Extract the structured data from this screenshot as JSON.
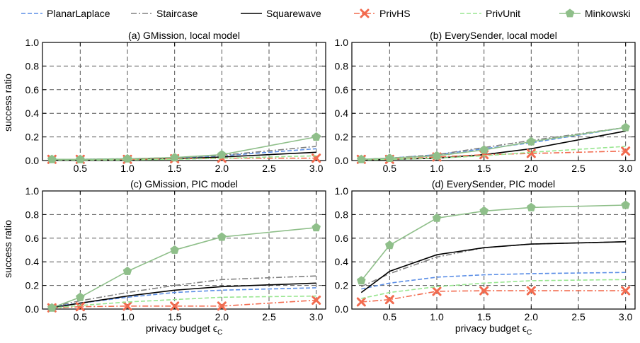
{
  "figure": {
    "x_axis_label": "privacy budget ϵ",
    "x_axis_subscript": "C",
    "y_axis_label": "success ratio"
  },
  "legend": [
    {
      "name": "PlanarLaplace",
      "color": "#5b8ee6",
      "dash": "dashed",
      "marker": "none"
    },
    {
      "name": "Staircase",
      "color": "#808080",
      "dash": "dashdot",
      "marker": "none"
    },
    {
      "name": "Squarewave",
      "color": "#000000",
      "dash": "solid",
      "marker": "none"
    },
    {
      "name": "PrivHS",
      "color": "#f26b4f",
      "dash": "dashdot",
      "marker": "x"
    },
    {
      "name": "PrivUnit",
      "color": "#98e690",
      "dash": "dashed",
      "marker": "none"
    },
    {
      "name": "Minkowski",
      "color": "#8fbf8a",
      "dash": "solid",
      "marker": "pentagon"
    }
  ],
  "chart_data": [
    {
      "type": "line",
      "title": "(a) GMission, local model",
      "x": [
        0.2,
        0.5,
        1.0,
        1.5,
        2.0,
        3.0
      ],
      "xlim": [
        0.1,
        3.1
      ],
      "ylim": [
        0,
        1.0
      ],
      "xticks": [
        "0.5",
        "1.0",
        "1.5",
        "2.0",
        "2.5",
        "3.0"
      ],
      "yticks": [
        "0.0",
        "0.2",
        "0.4",
        "0.6",
        "0.8",
        "1.0"
      ],
      "series": [
        {
          "name": "PlanarLaplace",
          "values": [
            0.01,
            0.01,
            0.015,
            0.02,
            0.04,
            0.1
          ]
        },
        {
          "name": "Staircase",
          "values": [
            0.01,
            0.01,
            0.015,
            0.025,
            0.045,
            0.12
          ]
        },
        {
          "name": "Squarewave",
          "values": [
            0.005,
            0.005,
            0.008,
            0.015,
            0.03,
            0.07
          ]
        },
        {
          "name": "PrivHS",
          "values": [
            0.01,
            0.01,
            0.01,
            0.015,
            0.02,
            0.02
          ]
        },
        {
          "name": "PrivUnit",
          "values": [
            0.005,
            0.005,
            0.005,
            0.01,
            0.02,
            0.04
          ]
        },
        {
          "name": "Minkowski",
          "values": [
            0.01,
            0.01,
            0.015,
            0.025,
            0.05,
            0.2
          ]
        }
      ]
    },
    {
      "type": "line",
      "title": "(b) EverySender, local model",
      "x": [
        0.2,
        0.5,
        1.0,
        1.5,
        2.0,
        3.0
      ],
      "xlim": [
        0.1,
        3.1
      ],
      "ylim": [
        0,
        1.0
      ],
      "xticks": [
        "0.5",
        "1.0",
        "1.5",
        "2.0",
        "2.5",
        "3.0"
      ],
      "yticks": [
        "0.0",
        "0.2",
        "0.4",
        "0.6",
        "0.8",
        "1.0"
      ],
      "series": [
        {
          "name": "PlanarLaplace",
          "values": [
            0.01,
            0.02,
            0.05,
            0.1,
            0.15,
            0.28
          ]
        },
        {
          "name": "Staircase",
          "values": [
            0.01,
            0.02,
            0.05,
            0.11,
            0.17,
            0.28
          ]
        },
        {
          "name": "Squarewave",
          "values": [
            0.005,
            0.01,
            0.02,
            0.05,
            0.1,
            0.25
          ]
        },
        {
          "name": "PrivHS",
          "values": [
            0.01,
            0.01,
            0.03,
            0.05,
            0.06,
            0.08
          ]
        },
        {
          "name": "PrivUnit",
          "values": [
            0.005,
            0.01,
            0.02,
            0.04,
            0.07,
            0.12
          ]
        },
        {
          "name": "Minkowski",
          "values": [
            0.01,
            0.02,
            0.04,
            0.09,
            0.16,
            0.28
          ]
        }
      ]
    },
    {
      "type": "line",
      "title": "(c) GMission, PIC model",
      "x": [
        0.2,
        0.5,
        1.0,
        1.5,
        2.0,
        3.0
      ],
      "xlim": [
        0.1,
        3.1
      ],
      "ylim": [
        0,
        1.0
      ],
      "xticks": [
        "0.5",
        "1.0",
        "1.5",
        "2.0",
        "2.5",
        "3.0"
      ],
      "yticks": [
        "0.0",
        "0.2",
        "0.4",
        "0.6",
        "0.8",
        "1.0"
      ],
      "series": [
        {
          "name": "PlanarLaplace",
          "values": [
            0.02,
            0.05,
            0.1,
            0.14,
            0.16,
            0.18
          ]
        },
        {
          "name": "Staircase",
          "values": [
            0.02,
            0.07,
            0.14,
            0.2,
            0.25,
            0.28
          ]
        },
        {
          "name": "Squarewave",
          "values": [
            0.01,
            0.05,
            0.11,
            0.16,
            0.19,
            0.22
          ]
        },
        {
          "name": "PrivHS",
          "values": [
            0.01,
            0.02,
            0.025,
            0.025,
            0.025,
            0.075
          ]
        },
        {
          "name": "PrivUnit",
          "values": [
            0.01,
            0.03,
            0.06,
            0.08,
            0.1,
            0.11
          ]
        },
        {
          "name": "Minkowski",
          "values": [
            0.01,
            0.1,
            0.32,
            0.5,
            0.61,
            0.69
          ]
        }
      ]
    },
    {
      "type": "line",
      "title": "(d) EverySender, PIC model",
      "x": [
        0.2,
        0.5,
        1.0,
        1.5,
        2.0,
        3.0
      ],
      "xlim": [
        0.1,
        3.1
      ],
      "ylim": [
        0,
        1.0
      ],
      "xticks": [
        "0.5",
        "1.0",
        "1.5",
        "2.0",
        "2.5",
        "3.0"
      ],
      "yticks": [
        "0.0",
        "0.2",
        "0.4",
        "0.6",
        "0.8",
        "1.0"
      ],
      "series": [
        {
          "name": "PlanarLaplace",
          "values": [
            0.17,
            0.22,
            0.27,
            0.29,
            0.3,
            0.31
          ]
        },
        {
          "name": "Staircase",
          "values": [
            0.19,
            0.3,
            0.44,
            0.52,
            0.55,
            0.57
          ]
        },
        {
          "name": "Squarewave",
          "values": [
            0.14,
            0.32,
            0.46,
            0.52,
            0.55,
            0.57
          ]
        },
        {
          "name": "PrivHS",
          "values": [
            0.06,
            0.08,
            0.15,
            0.155,
            0.155,
            0.155
          ]
        },
        {
          "name": "PrivUnit",
          "values": [
            0.09,
            0.14,
            0.19,
            0.22,
            0.24,
            0.25
          ]
        },
        {
          "name": "Minkowski",
          "values": [
            0.24,
            0.54,
            0.77,
            0.83,
            0.86,
            0.88
          ]
        }
      ]
    }
  ]
}
